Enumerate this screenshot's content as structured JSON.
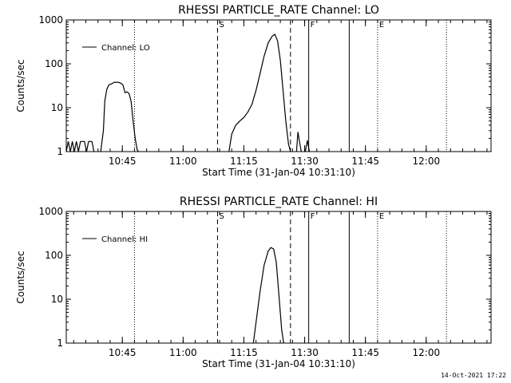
{
  "footer": {
    "timestamp": "14-Oct-2021 17:22"
  },
  "chart_data": [
    {
      "type": "line",
      "title": "RHESSI PARTICLE_RATE Channel: LO",
      "xlabel": "Start Time (31-Jan-04 10:31:10)",
      "ylabel": "Counts/sec",
      "yscale": "log",
      "xlim": [
        "10:31:10",
        "12:16:00"
      ],
      "ylim": [
        1,
        1000
      ],
      "yticks": [
        {
          "value": 1,
          "label": "1"
        },
        {
          "value": 10,
          "label": "10"
        },
        {
          "value": 100,
          "label": "100"
        },
        {
          "value": 1000,
          "label": "1000"
        }
      ],
      "xticks": [
        {
          "value": "10:45",
          "label": "10:45"
        },
        {
          "value": "11:00",
          "label": "11:00"
        },
        {
          "value": "11:15",
          "label": "11:15"
        },
        {
          "value": "11:30",
          "label": "11:30"
        },
        {
          "value": "11:45",
          "label": "11:45"
        },
        {
          "value": "12:00",
          "label": "12:00"
        }
      ],
      "legend": {
        "label": "Channel: LO",
        "position": "top-left"
      },
      "markers": [
        {
          "time": "10:48",
          "style": "dotted",
          "label": ""
        },
        {
          "time": "11:08:30",
          "style": "dashed",
          "label": "S"
        },
        {
          "time": "11:26:30",
          "style": "dashed",
          "label": ""
        },
        {
          "time": "11:31",
          "style": "solid",
          "label": "F"
        },
        {
          "time": "11:41",
          "style": "solid",
          "label": ""
        },
        {
          "time": "11:48",
          "style": "dotted",
          "label": "E"
        },
        {
          "time": "12:05",
          "style": "dotted",
          "label": ""
        }
      ],
      "series": [
        {
          "name": "Channel: LO",
          "segments": [
            [
              [
                "10:31:10",
                1
              ],
              [
                "10:31:40",
                1.7
              ],
              [
                "10:32:10",
                1
              ],
              [
                "10:32:40",
                1.7
              ],
              [
                "10:33:10",
                1
              ],
              [
                "10:33:40",
                1.7
              ],
              [
                "10:34:10",
                1
              ],
              [
                "10:34:40",
                1.7
              ],
              [
                "10:35:40",
                1.7
              ],
              [
                "10:36:10",
                1
              ],
              [
                "10:36:40",
                1.7
              ],
              [
                "10:37:30",
                1.7
              ],
              [
                "10:38:00",
                1
              ]
            ],
            [
              [
                "10:39:40",
                1
              ],
              [
                "10:40:20",
                3
              ],
              [
                "10:40:40",
                14
              ],
              [
                "10:41:10",
                26
              ],
              [
                "10:41:40",
                33
              ],
              [
                "10:42:20",
                35
              ],
              [
                "10:43:00",
                38
              ],
              [
                "10:44:00",
                38
              ],
              [
                "10:44:40",
                36
              ],
              [
                "10:45:10",
                33
              ],
              [
                "10:45:40",
                22
              ],
              [
                "10:46:10",
                23
              ],
              [
                "10:46:40",
                21
              ],
              [
                "10:47:10",
                14
              ],
              [
                "10:47:40",
                5
              ],
              [
                "10:48:10",
                2
              ],
              [
                "10:48:40",
                1.1
              ],
              [
                "10:49:00",
                1
              ]
            ],
            [
              [
                "11:11:20",
                1
              ],
              [
                "11:12:00",
                2.5
              ],
              [
                "11:13:00",
                4
              ],
              [
                "11:14:00",
                5
              ],
              [
                "11:15:00",
                6
              ],
              [
                "11:16:00",
                8
              ],
              [
                "11:17:00",
                12
              ],
              [
                "11:18:00",
                25
              ],
              [
                "11:19:00",
                60
              ],
              [
                "11:20:00",
                150
              ],
              [
                "11:21:00",
                300
              ],
              [
                "11:22:00",
                430
              ],
              [
                "11:22:40",
                470
              ],
              [
                "11:23:20",
                330
              ],
              [
                "11:24:00",
                120
              ],
              [
                "11:24:40",
                25
              ],
              [
                "11:25:20",
                5
              ],
              [
                "11:26:00",
                1.5
              ],
              [
                "11:26:30",
                1
              ]
            ],
            [
              [
                "11:28:00",
                1
              ],
              [
                "11:28:20",
                2.8
              ],
              [
                "11:28:50",
                1.5
              ],
              [
                "11:29:10",
                1
              ]
            ],
            [
              [
                "11:30:10",
                1
              ],
              [
                "11:30:40",
                1.8
              ],
              [
                "11:31:10",
                1
              ]
            ]
          ]
        }
      ]
    },
    {
      "type": "line",
      "title": "RHESSI PARTICLE_RATE Channel: HI",
      "xlabel": "Start Time (31-Jan-04 10:31:10)",
      "ylabel": "Counts/sec",
      "yscale": "log",
      "xlim": [
        "10:31:10",
        "12:16:00"
      ],
      "ylim": [
        1,
        1000
      ],
      "yticks": [
        {
          "value": 1,
          "label": "1"
        },
        {
          "value": 10,
          "label": "10"
        },
        {
          "value": 100,
          "label": "100"
        },
        {
          "value": 1000,
          "label": "1000"
        }
      ],
      "xticks": [
        {
          "value": "10:45",
          "label": "10:45"
        },
        {
          "value": "11:00",
          "label": "11:00"
        },
        {
          "value": "11:15",
          "label": "11:15"
        },
        {
          "value": "11:30",
          "label": "11:30"
        },
        {
          "value": "11:45",
          "label": "11:45"
        },
        {
          "value": "12:00",
          "label": "12:00"
        }
      ],
      "legend": {
        "label": "Channel: HI",
        "position": "top-left"
      },
      "markers": [
        {
          "time": "10:48",
          "style": "dotted",
          "label": ""
        },
        {
          "time": "11:08:30",
          "style": "dashed",
          "label": "S"
        },
        {
          "time": "11:26:30",
          "style": "dashed",
          "label": ""
        },
        {
          "time": "11:31",
          "style": "solid",
          "label": "F"
        },
        {
          "time": "11:41",
          "style": "solid",
          "label": ""
        },
        {
          "time": "11:48",
          "style": "dotted",
          "label": "E"
        },
        {
          "time": "12:05",
          "style": "dotted",
          "label": ""
        }
      ],
      "series": [
        {
          "name": "Channel: HI",
          "segments": [
            [
              [
                "11:17:20",
                1
              ],
              [
                "11:18:00",
                3
              ],
              [
                "11:19:00",
                15
              ],
              [
                "11:20:00",
                60
              ],
              [
                "11:21:00",
                125
              ],
              [
                "11:21:40",
                150
              ],
              [
                "11:22:20",
                140
              ],
              [
                "11:23:00",
                70
              ],
              [
                "11:23:40",
                12
              ],
              [
                "11:24:20",
                2
              ],
              [
                "11:24:50",
                1
              ]
            ]
          ]
        }
      ]
    }
  ]
}
